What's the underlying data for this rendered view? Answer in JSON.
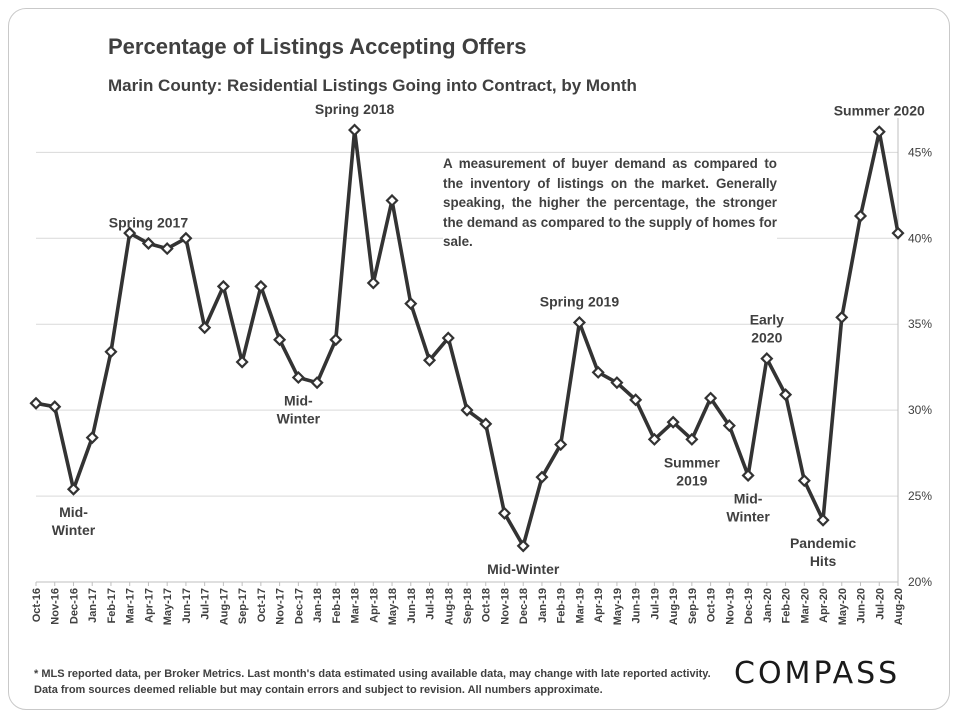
{
  "title": "Percentage of Listings Accepting Offers",
  "subtitle": "Marin County: Residential Listings Going into Contract, by Month",
  "note": "A measurement of buyer demand as compared to the inventory of listings on the market. Generally speaking, the higher the percentage, the stronger the demand as compared to the supply of homes for sale.",
  "footnote": "* MLS reported data, per Broker Metrics. Last month's data estimated using available data, may change with late reported activity. Data from sources deemed reliable but may contain errors and subject to revision. All numbers approximate.",
  "logo_text": "COMPASS",
  "colors": {
    "line": "#333333",
    "marker_fill": "#ffffff",
    "grid": "#d9d9d9",
    "text": "#404040"
  },
  "chart_data": {
    "type": "line",
    "title": "Percentage of Listings Accepting Offers",
    "subtitle": "Marin County: Residential Listings Going into Contract, by Month",
    "xlabel": "",
    "ylabel": "",
    "ylim": [
      20,
      47
    ],
    "yticks": [
      20,
      25,
      30,
      35,
      40,
      45
    ],
    "ytick_labels": [
      "20%",
      "25%",
      "30%",
      "35%",
      "40%",
      "45%"
    ],
    "y_axis_side": "right",
    "grid": true,
    "categories": [
      "Oct-16",
      "Nov-16",
      "Dec-16",
      "Jan-17",
      "Feb-17",
      "Mar-17",
      "Apr-17",
      "May-17",
      "Jun-17",
      "Jul-17",
      "Aug-17",
      "Sep-17",
      "Oct-17",
      "Nov-17",
      "Dec-17",
      "Jan-18",
      "Feb-18",
      "Mar-18",
      "Apr-18",
      "May-18",
      "Jun-18",
      "Jul-18",
      "Aug-18",
      "Sep-18",
      "Oct-18",
      "Nov-18",
      "Dec-18",
      "Jan-19",
      "Feb-19",
      "Mar-19",
      "Apr-19",
      "May-19",
      "Jun-19",
      "Jul-19",
      "Aug-19",
      "Sep-19",
      "Oct-19",
      "Nov-19",
      "Dec-19",
      "Jan-20",
      "Feb-20",
      "Mar-20",
      "Apr-20",
      "May-20",
      "Jun-20",
      "Jul-20",
      "Aug-20"
    ],
    "series": [
      {
        "name": "Percentage of Listings Accepting Offers",
        "values": [
          30.4,
          30.2,
          25.4,
          28.4,
          33.4,
          40.3,
          39.7,
          39.4,
          40.0,
          34.8,
          37.2,
          32.8,
          37.2,
          34.1,
          31.9,
          31.6,
          34.1,
          46.3,
          37.4,
          42.2,
          36.2,
          32.9,
          34.2,
          30.0,
          29.2,
          24.0,
          22.1,
          26.1,
          28.0,
          35.1,
          32.2,
          31.6,
          30.6,
          28.3,
          29.3,
          28.3,
          30.7,
          29.1,
          26.2,
          33.0,
          30.9,
          25.9,
          23.6,
          35.4,
          41.3,
          46.2,
          40.3
        ]
      }
    ],
    "annotations": [
      {
        "lines": [
          "Mid-",
          "Winter"
        ],
        "index": 2,
        "placement": "below"
      },
      {
        "lines": [
          "Spring 2017"
        ],
        "index": 6,
        "placement": "above"
      },
      {
        "lines": [
          "Mid-",
          "Winter"
        ],
        "index": 14,
        "placement": "below"
      },
      {
        "lines": [
          "Spring 2018"
        ],
        "index": 17,
        "placement": "above"
      },
      {
        "lines": [
          "Mid-Winter"
        ],
        "index": 26,
        "placement": "below"
      },
      {
        "lines": [
          "Spring 2019"
        ],
        "index": 29,
        "placement": "above"
      },
      {
        "lines": [
          "Summer",
          "2019"
        ],
        "index": 35,
        "placement": "below"
      },
      {
        "lines": [
          "Mid-",
          "Winter"
        ],
        "index": 38,
        "placement": "below"
      },
      {
        "lines": [
          "Early",
          "2020"
        ],
        "index": 39,
        "placement": "above"
      },
      {
        "lines": [
          "Pandemic",
          "Hits"
        ],
        "index": 42,
        "placement": "below"
      },
      {
        "lines": [
          "Summer 2020"
        ],
        "index": 45,
        "placement": "above"
      }
    ]
  }
}
